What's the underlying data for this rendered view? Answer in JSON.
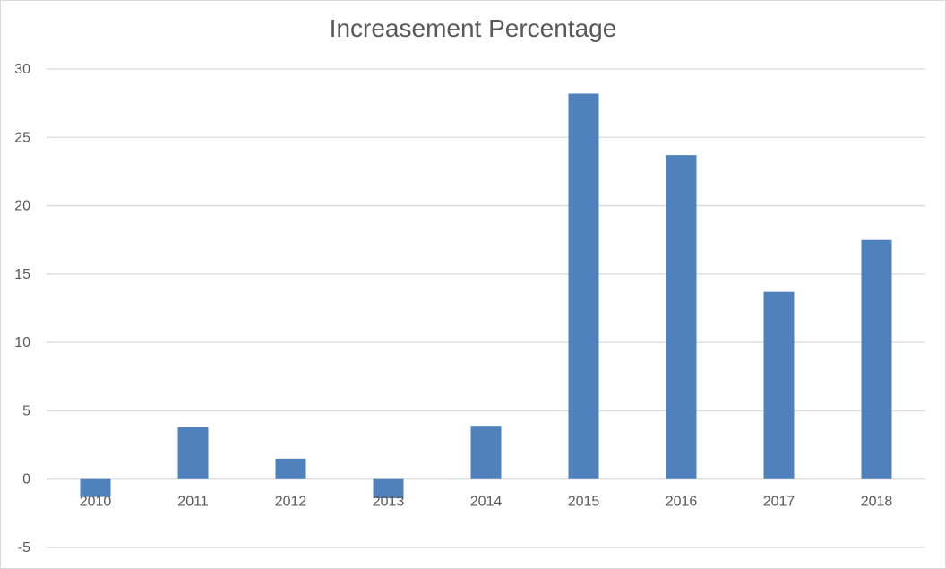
{
  "chart_data": {
    "type": "bar",
    "title": "Increasement Percentage",
    "categories": [
      "2010",
      "2011",
      "2012",
      "2013",
      "2014",
      "2015",
      "2016",
      "2017",
      "2018"
    ],
    "series": [
      {
        "values": [
          -1.3,
          3.8,
          1.5,
          -1.4,
          3.9,
          28.2,
          23.7,
          13.7,
          17.5
        ]
      }
    ],
    "ylim": [
      -5,
      30
    ],
    "yticks": [
      "30",
      "25",
      "20",
      "15",
      "10",
      "5",
      "0",
      "-5"
    ],
    "grid": true,
    "legend": "none",
    "bar_color": "#4f81bd",
    "grid_color": "#d9d9d9"
  }
}
